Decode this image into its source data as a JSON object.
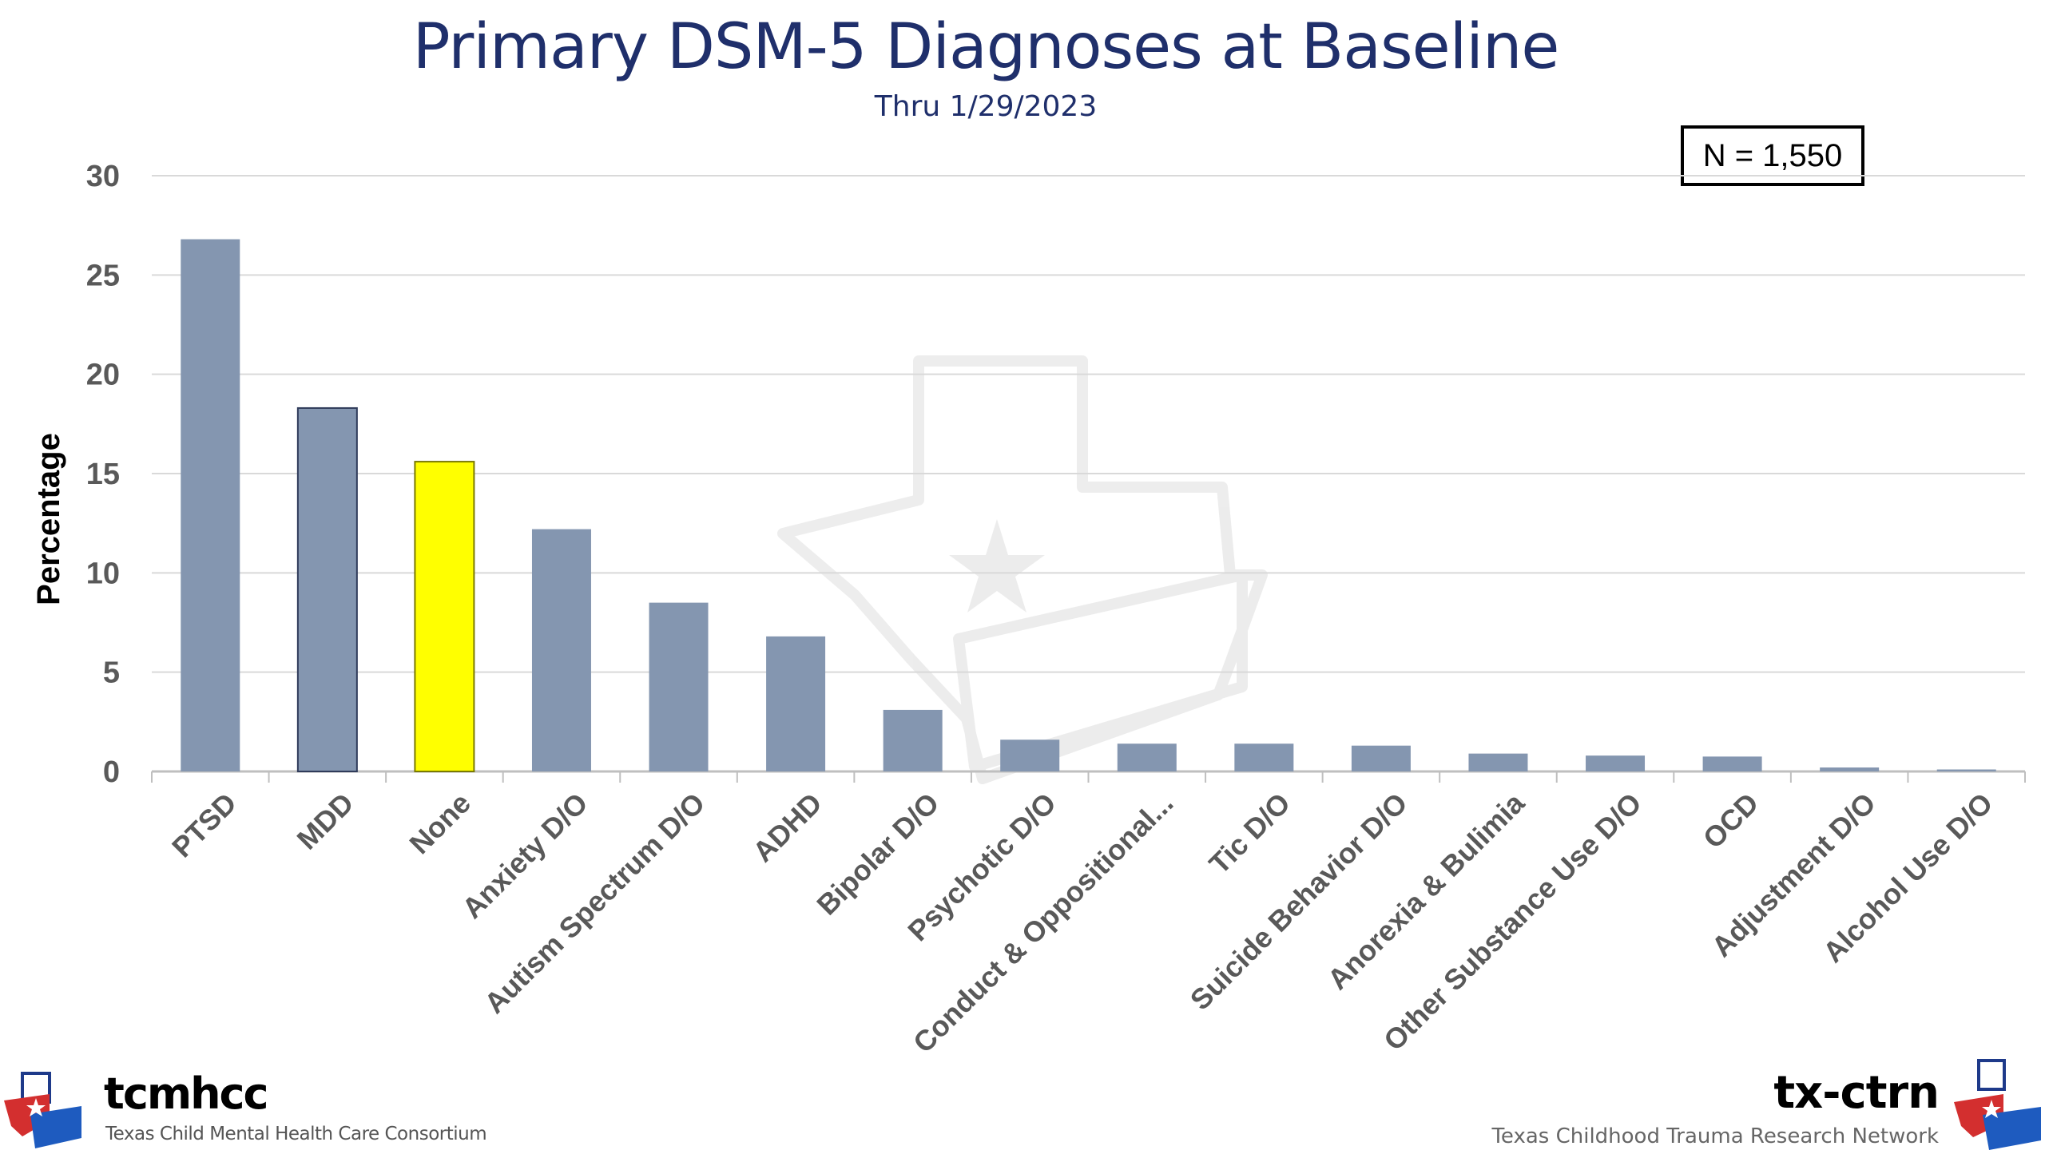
{
  "chart_data": {
    "type": "bar",
    "title": "Primary DSM-5 Diagnoses at Baseline",
    "subtitle": "Thru 1/29/2023",
    "annotation": "N = 1,550",
    "xlabel": "",
    "ylabel": "Percentage",
    "ylim": [
      0,
      30
    ],
    "yticks": [
      0,
      5,
      10,
      15,
      20,
      25,
      30
    ],
    "grid": true,
    "categories": [
      "PTSD",
      "MDD",
      "None",
      "Anxiety D/O",
      "Autism Spectrum D/O",
      "ADHD",
      "Bipolar D/O",
      "Psychotic D/O",
      "Conduct & Oppositional...",
      "Tic D/O",
      "Suicide Behavior D/O",
      "Anorexia & Bulimia",
      "Other Substance Use D/O",
      "OCD",
      "Adjustment D/O",
      "Alcohol Use D/O"
    ],
    "values": [
      26.8,
      18.3,
      15.6,
      12.2,
      8.5,
      6.8,
      3.1,
      1.6,
      1.4,
      1.4,
      1.3,
      0.9,
      0.8,
      0.75,
      0.2,
      0.1
    ],
    "colors": {
      "bar": "#8496b0",
      "highlight": "#ffff00",
      "highlight_category": "None",
      "grid": "#d9d9d9",
      "title": "#1f2f6b"
    }
  },
  "logos": {
    "left_name": "tcmhcc",
    "left_tagline": "Texas Child Mental Health Care Consortium",
    "right_name": "tx-ctrn",
    "right_tagline": "Texas Childhood Trauma Research Network"
  }
}
